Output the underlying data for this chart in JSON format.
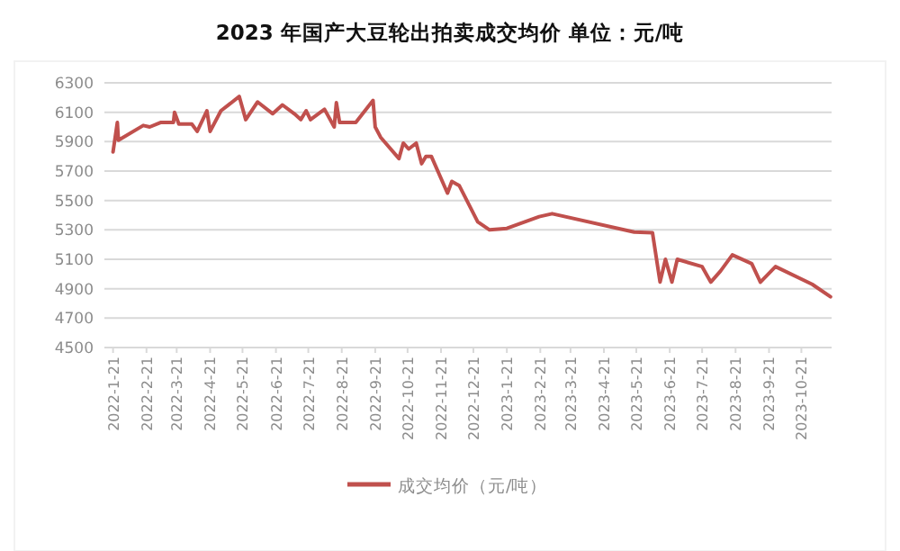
{
  "chart_data": {
    "type": "line",
    "title": "2023 年国产大豆轮出拍卖成交均价  单位：元/吨",
    "x": [
      "2022-01-21",
      "2022-01-25",
      "2022-01-26",
      "2022-02-18",
      "2022-02-24",
      "2022-03-06",
      "2022-03-18",
      "2022-03-19",
      "2022-03-23",
      "2022-04-04",
      "2022-04-09",
      "2022-04-18",
      "2022-04-21",
      "2022-05-01",
      "2022-05-18",
      "2022-05-24",
      "2022-06-04",
      "2022-06-18",
      "2022-06-27",
      "2022-07-08",
      "2022-07-14",
      "2022-07-19",
      "2022-07-23",
      "2022-08-05",
      "2022-08-14",
      "2022-08-16",
      "2022-08-19",
      "2022-09-03",
      "2022-09-19",
      "2022-09-21",
      "2022-09-26",
      "2022-10-13",
      "2022-10-17",
      "2022-10-22",
      "2022-10-29",
      "2022-11-03",
      "2022-11-07",
      "2022-11-12",
      "2022-11-27",
      "2022-12-01",
      "2022-12-08",
      "2022-12-25",
      "2023-01-05",
      "2023-01-21",
      "2023-02-20",
      "2023-03-04",
      "2023-05-19",
      "2023-06-05",
      "2023-06-12",
      "2023-06-17",
      "2023-06-23",
      "2023-06-28",
      "2023-07-21",
      "2023-07-29",
      "2023-08-07",
      "2023-08-18",
      "2023-09-05",
      "2023-09-13",
      "2023-09-27",
      "2023-10-31",
      "2023-11-17"
    ],
    "series": [
      {
        "name": "成交均价（元/吨）",
        "color": "#c0504d",
        "values": [
          5830,
          6030,
          5910,
          6010,
          6000,
          6030,
          6030,
          6100,
          6020,
          6020,
          5970,
          6110,
          5970,
          6110,
          6207,
          6050,
          6170,
          6090,
          6150,
          6090,
          6050,
          6110,
          6050,
          6120,
          6000,
          6165,
          6030,
          6030,
          6180,
          6000,
          5930,
          5785,
          5890,
          5850,
          5890,
          5750,
          5800,
          5800,
          5550,
          5630,
          5600,
          5355,
          5300,
          5310,
          5390,
          5410,
          5285,
          5280,
          4945,
          5100,
          4945,
          5100,
          5050,
          4945,
          5020,
          5130,
          5070,
          4945,
          5050,
          4930,
          4845
        ]
      }
    ],
    "xlim": [
      "2022-01-13",
      "2023-11-18"
    ],
    "xticks": [
      {
        "value": "2022-01-21",
        "label": "2022-1-21"
      },
      {
        "value": "2022-02-21",
        "label": "2022-2-21"
      },
      {
        "value": "2022-03-21",
        "label": "2022-3-21"
      },
      {
        "value": "2022-04-21",
        "label": "2022-4-21"
      },
      {
        "value": "2022-05-21",
        "label": "2022-5-21"
      },
      {
        "value": "2022-06-21",
        "label": "2022-6-21"
      },
      {
        "value": "2022-07-21",
        "label": "2022-7-21"
      },
      {
        "value": "2022-08-21",
        "label": "2022-8-21"
      },
      {
        "value": "2022-09-21",
        "label": "2022-9-21"
      },
      {
        "value": "2022-10-21",
        "label": "2022-10-21"
      },
      {
        "value": "2022-11-21",
        "label": "2022-11-21"
      },
      {
        "value": "2022-12-21",
        "label": "2022-12-21"
      },
      {
        "value": "2023-01-21",
        "label": "2023-1-21"
      },
      {
        "value": "2023-02-21",
        "label": "2023-2-21"
      },
      {
        "value": "2023-03-21",
        "label": "2023-3-21"
      },
      {
        "value": "2023-04-21",
        "label": "2023-4-21"
      },
      {
        "value": "2023-05-21",
        "label": "2023-5-21"
      },
      {
        "value": "2023-06-21",
        "label": "2023-6-21"
      },
      {
        "value": "2023-07-21",
        "label": "2023-7-21"
      },
      {
        "value": "2023-08-21",
        "label": "2023-8-21"
      },
      {
        "value": "2023-09-21",
        "label": "2023-9-21"
      },
      {
        "value": "2023-10-21",
        "label": "2023-10-21"
      }
    ],
    "ylim": [
      4500,
      6300
    ],
    "yticks": [
      4500,
      4700,
      4900,
      5100,
      5300,
      5500,
      5700,
      5900,
      6100,
      6300
    ],
    "grid": "y",
    "legend": "bottom",
    "marker": "none",
    "line_style": "solid"
  }
}
